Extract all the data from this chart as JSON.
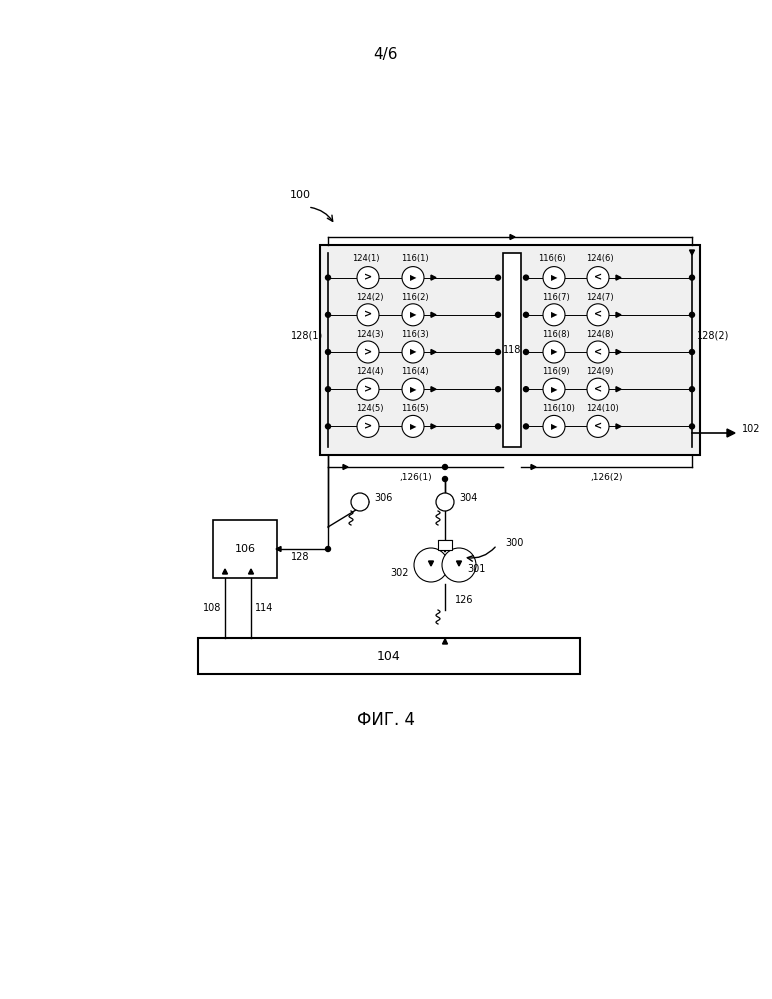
{
  "title": "4/6",
  "fig_label": "ФИГ. 4",
  "bg_color": "#ffffff",
  "line_color": "#000000",
  "fig_width": 7.72,
  "fig_height": 9.99,
  "dpi": 100
}
